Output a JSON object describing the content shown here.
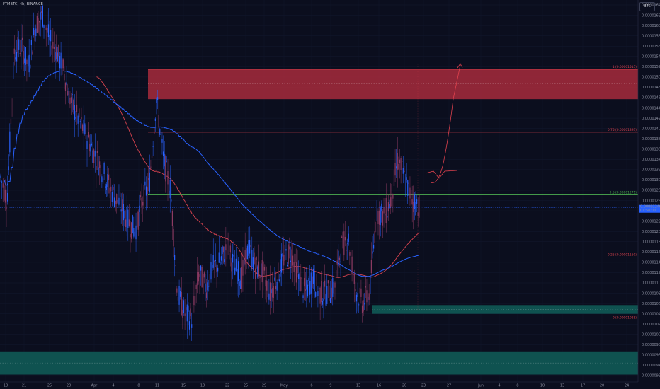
{
  "symbol": "FTMBTC, 4h, BINANCE",
  "currency_button": "BTC",
  "colors": {
    "background": "#0b0e1e",
    "resistance_zone": "#a22a3b",
    "support_zone": "#0f5a55",
    "fib_line": "#e0424e",
    "fib_mid_line": "#4caf50",
    "ma_red": "#d9434f",
    "ma_blue": "#2962ff",
    "price_tag": "#2962ff",
    "candle": "#2962ff",
    "projection": "#e0424e"
  },
  "chart_data": {
    "type": "candlestick",
    "symbol": "FTMBTC",
    "timeframe": "4h",
    "exchange": "BINANCE",
    "y_axis": {
      "min": 9.2e-06,
      "max": 1.64e-05,
      "tick_step": 2e-07,
      "ticks": [
        "0.00000920",
        "0.00000940",
        "0.00000960",
        "0.00000980",
        "0.00001000",
        "0.00001020",
        "0.00001040",
        "0.00001060",
        "0.00001080",
        "0.00001100",
        "0.00001120",
        "0.00001140",
        "0.00001160",
        "0.00001180",
        "0.00001200",
        "0.00001220",
        "0.00001240",
        "0.00001260",
        "0.00001280",
        "0.00001300",
        "0.00001320",
        "0.00001340",
        "0.00001360",
        "0.00001380",
        "0.00001400",
        "0.00001420",
        "0.00001440",
        "0.00001460",
        "0.00001480",
        "0.00001500",
        "0.00001520",
        "0.00001540",
        "0.00001560",
        "0.00001580",
        "0.00001600",
        "0.00001620",
        "0.00001640"
      ]
    },
    "x_axis_labels": [
      "18",
      "21",
      "25",
      "28",
      "Apr",
      "4",
      "8",
      "11",
      "15",
      "18",
      "22",
      "25",
      "29",
      "May",
      "6",
      "9",
      "13",
      "16",
      "20",
      "23",
      "27",
      "Jun",
      "4",
      "8",
      "10",
      "13",
      "17",
      "20",
      "24"
    ],
    "last_price": "0.00001246",
    "last_price_sub": "01:50:00",
    "fib_levels": [
      {
        "label": "1 (0.00001515)",
        "value": 1.515e-05
      },
      {
        "label": "0.75 (0.00001393)",
        "value": 1.393e-05
      },
      {
        "label": "0.5 (0.00001271)",
        "value": 1.271e-05
      },
      {
        "label": "0.25 (0.00001150)",
        "value": 1.15e-05
      },
      {
        "label": "0 (0.00001028)",
        "value": 1.028e-05
      }
    ],
    "zones": [
      {
        "name": "resistance",
        "top": 1.516e-05,
        "bottom": 1.457e-05
      },
      {
        "name": "demand",
        "top": 1.057e-05,
        "bottom": 1.04e-05
      },
      {
        "name": "support",
        "top": 9.67e-06,
        "bottom": 9.22e-06
      }
    ],
    "series": [
      {
        "name": "price",
        "x": [
          0,
          10,
          20,
          30,
          40,
          50,
          60,
          70,
          80,
          90,
          100,
          110,
          120,
          130,
          140,
          150,
          160,
          170,
          180,
          190,
          200,
          210,
          220,
          230,
          240,
          250,
          260,
          270,
          280,
          290,
          300,
          310,
          320,
          330,
          340,
          350,
          360,
          370,
          380,
          390,
          400,
          410,
          420,
          430,
          440,
          450,
          460,
          470,
          480,
          490,
          500,
          510,
          520,
          530,
          540,
          550,
          560,
          570,
          580,
          590
        ],
        "values": [
          1.31e-05,
          1.26e-05,
          1.55e-05,
          1.56e-05,
          1.52e-05,
          1.6e-05,
          1.62e-05,
          1.57e-05,
          1.55e-05,
          1.51e-05,
          1.45e-05,
          1.42e-05,
          1.39e-05,
          1.36e-05,
          1.33e-05,
          1.3e-05,
          1.27e-05,
          1.25e-05,
          1.22e-05,
          1.2e-05,
          1.26e-05,
          1.29e-05,
          1.46e-05,
          1.34e-05,
          1.28e-05,
          1.08e-05,
          1.04e-05,
          1.03e-05,
          1.12e-05,
          1.09e-05,
          1.13e-05,
          1.14e-05,
          1.17e-05,
          1.13e-05,
          1.11e-05,
          1.17e-05,
          1.13e-05,
          1.12e-05,
          1.08e-05,
          1.11e-05,
          1.15e-05,
          1.16e-05,
          1.11e-05,
          1.08e-05,
          1.11e-05,
          1.08e-05,
          1.08e-05,
          1.09e-05,
          1.17e-05,
          1.19e-05,
          1.09e-05,
          1.06e-05,
          1.08e-05,
          1.24e-05,
          1.23e-05,
          1.26e-05,
          1.34e-05,
          1.3e-05,
          1.26e-05,
          1.25e-05
        ]
      }
    ]
  }
}
